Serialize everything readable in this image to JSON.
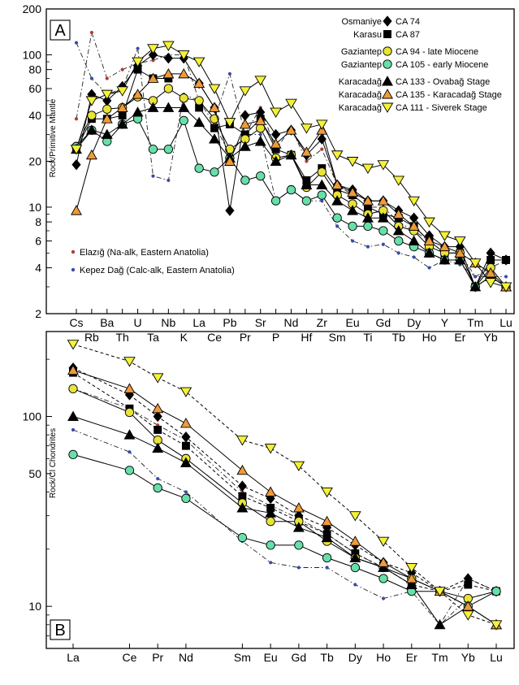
{
  "chart_data": [
    {
      "type": "line",
      "panel_label": "A",
      "ylabel": "Rock/Primitive Mantle",
      "yscale": "log",
      "ylim": [
        2,
        200
      ],
      "y_ticks": [
        2,
        4,
        6,
        8,
        10,
        20,
        40,
        60,
        80,
        100,
        200
      ],
      "categories": [
        "Cs",
        "Rb",
        "Ba",
        "Th",
        "U",
        "Ta",
        "Nb",
        "K",
        "La",
        "Ce",
        "Pb",
        "Pr",
        "Sr",
        "P",
        "Nd",
        "Hf",
        "Zr",
        "Sm",
        "Eu",
        "Ti",
        "Gd",
        "Tb",
        "Dy",
        "Ho",
        "Y",
        "Er",
        "Tm",
        "Yb",
        "Lu"
      ],
      "legend": [
        {
          "location": "Osmaniye",
          "sample": "CA 74"
        },
        {
          "location": "Karasu",
          "sample": "CA 87"
        },
        {
          "location": "Gaziantep",
          "sample": "CA 94 - late Miocene"
        },
        {
          "location": "Gaziantep",
          "sample": "CA 105 - early Miocene"
        },
        {
          "location": "Karacadağ",
          "sample": "CA 133 - Ovabağ Stage"
        },
        {
          "location": "Karacadağ",
          "sample": "CA 135 - Karacadağ Stage"
        },
        {
          "location": "Karacadağ",
          "sample": "CA 111 - Siverek Stage"
        }
      ],
      "ref_legend": [
        {
          "name": "Elazığ (Na-alk, Eastern Anatolia)",
          "color": "#b03a3a"
        },
        {
          "name": "Kepez Dağ (Calc-alk, Eastern Anatolia)",
          "color": "#3a4aa8"
        }
      ],
      "series": [
        {
          "name": "CA 74",
          "marker": "diamond",
          "color": "#000000",
          "dash": false,
          "values": [
            19,
            55,
            50,
            62,
            85,
            100,
            95,
            95,
            65,
            45,
            9.5,
            40,
            42,
            30,
            32,
            22,
            28,
            14,
            13,
            11,
            11,
            9.5,
            8.5,
            6.5,
            5.5,
            5.5,
            3,
            5,
            4.5
          ]
        },
        {
          "name": "CA 87",
          "marker": "square",
          "color": "#000000",
          "dash": false,
          "values": [
            24,
            38,
            38,
            40,
            80,
            70,
            70,
            null,
            45,
            33,
            35,
            30,
            38,
            24,
            22,
            15,
            18,
            13,
            12,
            10,
            9,
            8.5,
            7.5,
            6,
            5,
            5,
            3,
            4.5,
            4.5
          ]
        },
        {
          "name": "CA 94 - late Miocene",
          "marker": "circle",
          "color": "#e8e337",
          "dash": false,
          "values": [
            25,
            40,
            44,
            45,
            53,
            50,
            60,
            52,
            50,
            38,
            24,
            28,
            33,
            21,
            22,
            13.5,
            17,
            12,
            10.5,
            9,
            9.5,
            7.5,
            7,
            5.5,
            5,
            5,
            3,
            4,
            3
          ]
        },
        {
          "name": "CA 105 - early Miocene",
          "marker": "circle",
          "color": "#66e0a8",
          "dash": false,
          "values": [
            25,
            32,
            27,
            35,
            38,
            24,
            24,
            37,
            18,
            17,
            21,
            15,
            16,
            11,
            13,
            11,
            12,
            8.5,
            7.5,
            7.5,
            7,
            6,
            5.5,
            5,
            4.5,
            4.5,
            3,
            3.5,
            3
          ]
        },
        {
          "name": "CA 133 - Ovabağ Stage",
          "marker": "triangle",
          "color": "#000000",
          "dash": false,
          "values": [
            24,
            32,
            30,
            35,
            42,
            45,
            45,
            45,
            36,
            28,
            21,
            25,
            27,
            20,
            22,
            14,
            14,
            11,
            9.5,
            8.5,
            8.5,
            7,
            6,
            5,
            4.5,
            4.5,
            3,
            3.5,
            3
          ]
        },
        {
          "name": "CA 135 - Karacadağ Stage",
          "marker": "triangle",
          "color": "#f09a3a",
          "dash": false,
          "values": [
            9.5,
            22,
            38,
            45,
            55,
            70,
            75,
            75,
            65,
            45,
            20,
            35,
            37,
            26,
            32,
            23,
            32,
            14,
            12.5,
            11,
            11,
            9,
            7.5,
            6,
            5.5,
            5,
            4.3,
            3.7,
            3
          ]
        },
        {
          "name": "CA 111 - Siverek Stage",
          "marker": "invtriangle",
          "color": "#f4f238",
          "dash": false,
          "values": [
            24,
            50,
            55,
            58,
            90,
            110,
            115,
            100,
            90,
            60,
            36,
            58,
            68,
            42,
            48,
            33,
            35,
            22,
            20,
            18,
            19,
            15,
            11,
            8,
            6.5,
            6,
            4.3,
            3.2,
            3
          ]
        }
      ],
      "ref_series": [
        {
          "name": "Elazığ (Na-alk, Eastern Anatolia)",
          "color": "#b03a3a",
          "values": [
            38,
            140,
            70,
            80,
            88,
            92,
            100,
            100,
            50,
            35,
            22,
            30,
            45,
            24,
            33,
            20,
            24,
            14,
            12,
            10,
            10,
            8,
            7,
            6,
            5,
            5,
            3.5,
            4,
            4.5
          ]
        },
        {
          "name": "Kepez Dağ (Calc-alk, Eastern Anatolia)",
          "color": "#3a4aa8",
          "values": [
            120,
            70,
            55,
            60,
            110,
            16,
            15,
            55,
            50,
            38,
            75,
            30,
            30,
            11,
            13,
            11,
            11,
            7.5,
            6,
            5.5,
            5.7,
            5,
            4.7,
            4,
            4.5,
            4.2,
            3.5,
            3.5,
            3.5
          ]
        }
      ]
    },
    {
      "type": "line",
      "panel_label": "B",
      "ylabel": "Rock/Cl Chondrites",
      "yscale": "log",
      "ylim": [
        6,
        280
      ],
      "y_ticks": [
        10,
        50,
        100
      ],
      "categories": [
        "La",
        "Ce",
        "Pr",
        "Nd",
        "Sm",
        "Eu",
        "Gd",
        "Tb",
        "Dy",
        "Ho",
        "Er",
        "Tm",
        "Yb",
        "Lu"
      ],
      "x_positions": [
        57,
        59,
        60,
        61,
        63,
        64,
        65,
        66,
        67,
        68,
        69,
        70,
        71,
        72
      ],
      "series": [
        {
          "name": "CA 74",
          "marker": "diamond",
          "color": "#000000",
          "dash": true,
          "values": [
            180,
            130,
            100,
            78,
            43,
            37,
            30,
            26,
            21,
            17,
            15,
            12,
            14,
            12
          ]
        },
        {
          "name": "CA 87",
          "marker": "square",
          "color": "#000000",
          "dash": true,
          "values": [
            170,
            110,
            85,
            70,
            38,
            33,
            28,
            24,
            19,
            16,
            13,
            12,
            13,
            12
          ]
        },
        {
          "name": "CA 94 - late Miocene",
          "marker": "circle",
          "color": "#e8e337",
          "dash": false,
          "values": [
            140,
            105,
            75,
            60,
            35,
            28,
            28,
            22,
            18,
            16,
            14,
            12,
            11,
            12
          ]
        },
        {
          "name": "CA 105 - early Miocene",
          "marker": "circle",
          "color": "#66e0a8",
          "dash": false,
          "values": [
            63,
            52,
            42,
            37,
            23,
            21,
            21,
            18,
            16,
            14,
            12,
            12,
            10,
            12
          ]
        },
        {
          "name": "CA 133 - Ovabağ Stage",
          "marker": "triangle",
          "color": "#000000",
          "dash": false,
          "values": [
            100,
            80,
            68,
            57,
            33,
            31,
            26,
            23,
            18,
            16,
            13,
            8,
            10,
            8
          ]
        },
        {
          "name": "CA 135 - Karacadağ Stage",
          "marker": "triangle",
          "color": "#f09a3a",
          "dash": false,
          "values": [
            175,
            140,
            110,
            92,
            52,
            40,
            33,
            28,
            22,
            17,
            14,
            12,
            10,
            8
          ]
        },
        {
          "name": "CA 111 - Siverek Stage",
          "marker": "invtriangle",
          "color": "#f4f238",
          "dash": true,
          "values": [
            240,
            195,
            160,
            135,
            75,
            68,
            55,
            40,
            30,
            22,
            16,
            12,
            9,
            8
          ]
        }
      ],
      "ref_series": [
        {
          "name": "Elazığ (Na-alk, Eastern Anatolia)",
          "color": "#b03a3a",
          "values": [
            140,
            110,
            90,
            75,
            40,
            34,
            29,
            24,
            19,
            16,
            13,
            8,
            14,
            12
          ]
        },
        {
          "name": "Kepez Dağ (Calc-alk, Eastern Anatolia)",
          "color": "#3a4aa8",
          "values": [
            85,
            65,
            47,
            40,
            22,
            17,
            16,
            16,
            13,
            11,
            12,
            8,
            11,
            12
          ]
        }
      ]
    }
  ]
}
